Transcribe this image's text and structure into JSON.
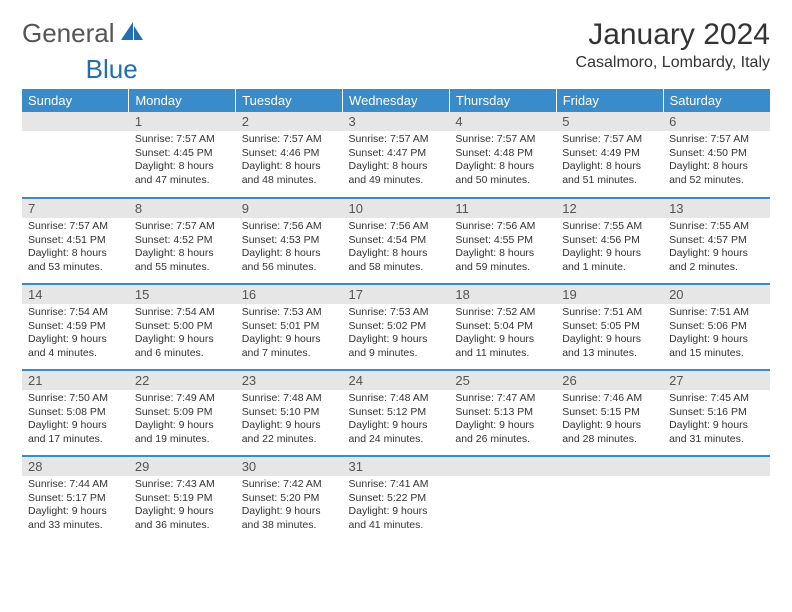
{
  "brand": {
    "part1": "General",
    "part2": "Blue"
  },
  "title": "January 2024",
  "location": "Casalmoro, Lombardy, Italy",
  "colors": {
    "header_bg": "#3a8bc9",
    "header_fg": "#ffffff",
    "daynum_bg": "#e6e6e6",
    "row_border": "#3a8bc9",
    "logo_blue": "#1f6fb2"
  },
  "weekdays": [
    "Sunday",
    "Monday",
    "Tuesday",
    "Wednesday",
    "Thursday",
    "Friday",
    "Saturday"
  ],
  "start_offset": 1,
  "days": [
    {
      "n": "1",
      "sunrise": "7:57 AM",
      "sunset": "4:45 PM",
      "daylight": "8 hours and 47 minutes."
    },
    {
      "n": "2",
      "sunrise": "7:57 AM",
      "sunset": "4:46 PM",
      "daylight": "8 hours and 48 minutes."
    },
    {
      "n": "3",
      "sunrise": "7:57 AM",
      "sunset": "4:47 PM",
      "daylight": "8 hours and 49 minutes."
    },
    {
      "n": "4",
      "sunrise": "7:57 AM",
      "sunset": "4:48 PM",
      "daylight": "8 hours and 50 minutes."
    },
    {
      "n": "5",
      "sunrise": "7:57 AM",
      "sunset": "4:49 PM",
      "daylight": "8 hours and 51 minutes."
    },
    {
      "n": "6",
      "sunrise": "7:57 AM",
      "sunset": "4:50 PM",
      "daylight": "8 hours and 52 minutes."
    },
    {
      "n": "7",
      "sunrise": "7:57 AM",
      "sunset": "4:51 PM",
      "daylight": "8 hours and 53 minutes."
    },
    {
      "n": "8",
      "sunrise": "7:57 AM",
      "sunset": "4:52 PM",
      "daylight": "8 hours and 55 minutes."
    },
    {
      "n": "9",
      "sunrise": "7:56 AM",
      "sunset": "4:53 PM",
      "daylight": "8 hours and 56 minutes."
    },
    {
      "n": "10",
      "sunrise": "7:56 AM",
      "sunset": "4:54 PM",
      "daylight": "8 hours and 58 minutes."
    },
    {
      "n": "11",
      "sunrise": "7:56 AM",
      "sunset": "4:55 PM",
      "daylight": "8 hours and 59 minutes."
    },
    {
      "n": "12",
      "sunrise": "7:55 AM",
      "sunset": "4:56 PM",
      "daylight": "9 hours and 1 minute."
    },
    {
      "n": "13",
      "sunrise": "7:55 AM",
      "sunset": "4:57 PM",
      "daylight": "9 hours and 2 minutes."
    },
    {
      "n": "14",
      "sunrise": "7:54 AM",
      "sunset": "4:59 PM",
      "daylight": "9 hours and 4 minutes."
    },
    {
      "n": "15",
      "sunrise": "7:54 AM",
      "sunset": "5:00 PM",
      "daylight": "9 hours and 6 minutes."
    },
    {
      "n": "16",
      "sunrise": "7:53 AM",
      "sunset": "5:01 PM",
      "daylight": "9 hours and 7 minutes."
    },
    {
      "n": "17",
      "sunrise": "7:53 AM",
      "sunset": "5:02 PM",
      "daylight": "9 hours and 9 minutes."
    },
    {
      "n": "18",
      "sunrise": "7:52 AM",
      "sunset": "5:04 PM",
      "daylight": "9 hours and 11 minutes."
    },
    {
      "n": "19",
      "sunrise": "7:51 AM",
      "sunset": "5:05 PM",
      "daylight": "9 hours and 13 minutes."
    },
    {
      "n": "20",
      "sunrise": "7:51 AM",
      "sunset": "5:06 PM",
      "daylight": "9 hours and 15 minutes."
    },
    {
      "n": "21",
      "sunrise": "7:50 AM",
      "sunset": "5:08 PM",
      "daylight": "9 hours and 17 minutes."
    },
    {
      "n": "22",
      "sunrise": "7:49 AM",
      "sunset": "5:09 PM",
      "daylight": "9 hours and 19 minutes."
    },
    {
      "n": "23",
      "sunrise": "7:48 AM",
      "sunset": "5:10 PM",
      "daylight": "9 hours and 22 minutes."
    },
    {
      "n": "24",
      "sunrise": "7:48 AM",
      "sunset": "5:12 PM",
      "daylight": "9 hours and 24 minutes."
    },
    {
      "n": "25",
      "sunrise": "7:47 AM",
      "sunset": "5:13 PM",
      "daylight": "9 hours and 26 minutes."
    },
    {
      "n": "26",
      "sunrise": "7:46 AM",
      "sunset": "5:15 PM",
      "daylight": "9 hours and 28 minutes."
    },
    {
      "n": "27",
      "sunrise": "7:45 AM",
      "sunset": "5:16 PM",
      "daylight": "9 hours and 31 minutes."
    },
    {
      "n": "28",
      "sunrise": "7:44 AM",
      "sunset": "5:17 PM",
      "daylight": "9 hours and 33 minutes."
    },
    {
      "n": "29",
      "sunrise": "7:43 AM",
      "sunset": "5:19 PM",
      "daylight": "9 hours and 36 minutes."
    },
    {
      "n": "30",
      "sunrise": "7:42 AM",
      "sunset": "5:20 PM",
      "daylight": "9 hours and 38 minutes."
    },
    {
      "n": "31",
      "sunrise": "7:41 AM",
      "sunset": "5:22 PM",
      "daylight": "9 hours and 41 minutes."
    }
  ],
  "labels": {
    "sunrise": "Sunrise:",
    "sunset": "Sunset:",
    "daylight": "Daylight:"
  }
}
